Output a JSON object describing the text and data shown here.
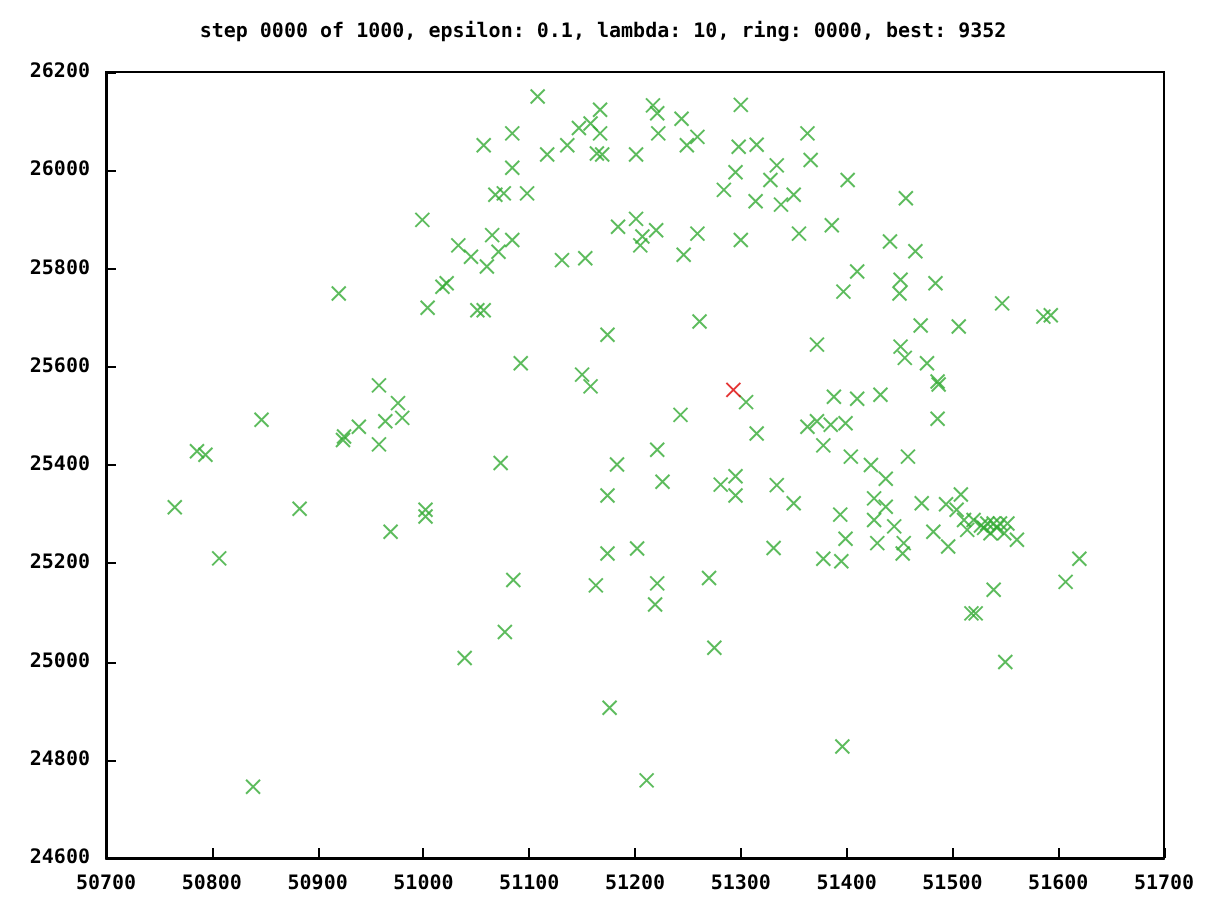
{
  "chart_data": {
    "type": "scatter",
    "title": "step 0000 of 1000, epsilon: 0.1, lambda: 10, ring: 0000, best: 9352",
    "xlim": [
      50700,
      51700
    ],
    "xticks": [
      50700,
      50800,
      50900,
      51000,
      51100,
      51200,
      51300,
      51400,
      51500,
      51600,
      51700
    ],
    "ylim": [
      24600,
      26200
    ],
    "yticks": [
      24600,
      24800,
      25000,
      25200,
      25400,
      25600,
      25800,
      26000,
      26200
    ],
    "grid": false,
    "marker": "cross",
    "series": [
      {
        "color": "#33aa33",
        "x": [
          51108,
          51217,
          51221,
          51167,
          51158,
          51147,
          51167,
          51222,
          51084,
          51057,
          51136,
          51117,
          51164,
          51169,
          51201,
          51084,
          51068,
          51076,
          51098,
          50999,
          51184,
          51201,
          51207,
          51205,
          51220,
          51033,
          51045,
          51065,
          51084,
          51071,
          51060,
          51131,
          51153,
          50920,
          51022,
          51018,
          51004,
          51051,
          51057,
          51174,
          51092,
          51150,
          51158,
          50958,
          50976,
          50964,
          50980,
          50847,
          50939,
          50925,
          50786,
          50794,
          50924,
          50958,
          50765,
          50883,
          50969,
          51002,
          51002,
          50807,
          51073,
          51183,
          51174,
          51174,
          51202,
          51163,
          51085,
          51221,
          51226,
          51221,
          51219,
          51077,
          51039,
          51176,
          51211,
          50839,
          51300,
          51244,
          51259,
          51249,
          51298,
          51315,
          51363,
          51366,
          51334,
          51295,
          51284,
          51328,
          51314,
          51338,
          51350,
          51401,
          51456,
          51259,
          51300,
          51355,
          51386,
          51246,
          51441,
          51465,
          51410,
          51397,
          51451,
          51450,
          51484,
          51547,
          51586,
          51593,
          51261,
          51470,
          51506,
          51372,
          51451,
          51455,
          51476,
          51486,
          51487,
          51305,
          51388,
          51410,
          51432,
          51243,
          51486,
          51315,
          51363,
          51372,
          51385,
          51399,
          51378,
          51404,
          51423,
          51437,
          51458,
          51281,
          51295,
          51295,
          51334,
          51350,
          51394,
          51426,
          51437,
          51426,
          51445,
          51471,
          51494,
          51508,
          51504,
          51511,
          51514,
          51520,
          51527,
          51533,
          51539,
          51545,
          51552,
          51536,
          51549,
          51561,
          51530,
          51542,
          51482,
          51496,
          51399,
          51429,
          51454,
          51453,
          51331,
          51378,
          51395,
          51620,
          51607,
          51539,
          51518,
          51522,
          51270,
          51275,
          51550,
          51396
        ],
        "values": [
          26150,
          26132,
          26116,
          26123,
          26095,
          26086,
          26075,
          26075,
          26075,
          26051,
          26051,
          26032,
          26034,
          26032,
          26032,
          26005,
          25950,
          25953,
          25953,
          25899,
          25885,
          25901,
          25865,
          25847,
          25878,
          25847,
          25824,
          25868,
          25858,
          25834,
          25804,
          25817,
          25821,
          25749,
          25770,
          25763,
          25720,
          25715,
          25715,
          25665,
          25607,
          25584,
          25560,
          25562,
          25526,
          25489,
          25496,
          25492,
          25478,
          25458,
          25428,
          25421,
          25451,
          25442,
          25314,
          25311,
          25264,
          25309,
          25295,
          25210,
          25404,
          25401,
          25338,
          25220,
          25230,
          25155,
          25166,
          25431,
          25366,
          25159,
          25116,
          25060,
          25007,
          24906,
          24758,
          24745,
          26133,
          26105,
          26068,
          26051,
          26048,
          26052,
          26075,
          26021,
          26010,
          25996,
          25960,
          25980,
          25937,
          25930,
          25950,
          25980,
          25943,
          25871,
          25858,
          25871,
          25888,
          25828,
          25855,
          25835,
          25794,
          25753,
          25777,
          25749,
          25770,
          25729,
          25702,
          25705,
          25692,
          25684,
          25682,
          25645,
          25641,
          25618,
          25607,
          25570,
          25564,
          25528,
          25539,
          25535,
          25543,
          25502,
          25494,
          25464,
          25478,
          25489,
          25482,
          25485,
          25440,
          25417,
          25400,
          25372,
          25417,
          25360,
          25377,
          25338,
          25359,
          25322,
          25299,
          25332,
          25315,
          25288,
          25275,
          25322,
          25320,
          25340,
          25309,
          25288,
          25268,
          25288,
          25277,
          25281,
          25281,
          25281,
          25281,
          25261,
          25261,
          25248,
          25272,
          25272,
          25264,
          25234,
          25250,
          25241,
          25241,
          25220,
          25231,
          25209,
          25204,
          25209,
          25162,
          25146,
          25098,
          25098,
          25170,
          25028,
          24999,
          24827
        ]
      },
      {
        "color": "#dd0000",
        "x": [
          51293
        ],
        "values": [
          25553
        ]
      }
    ]
  }
}
